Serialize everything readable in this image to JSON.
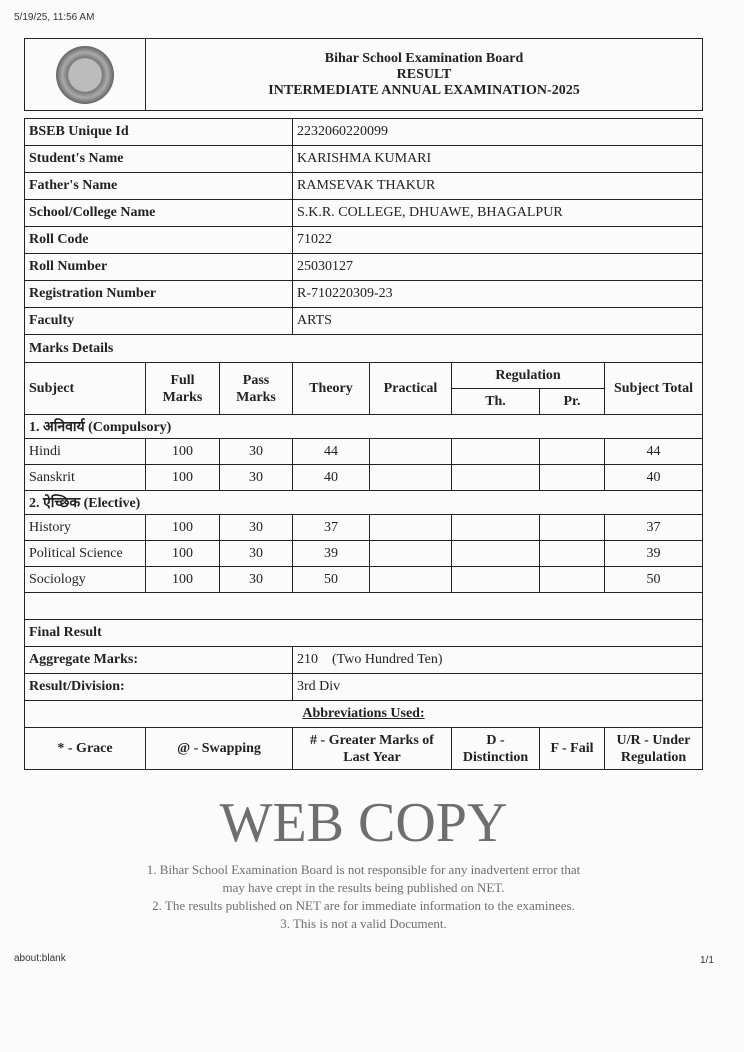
{
  "browser": {
    "timestamp": "5/19/25, 11:56 AM",
    "url": "about:blank",
    "page": "1/1"
  },
  "header": {
    "org": "Bihar School Examination Board",
    "title": "RESULT",
    "exam": "INTERMEDIATE ANNUAL EXAMINATION-2025"
  },
  "info": [
    {
      "label": "BSEB Unique Id",
      "value": "2232060220099"
    },
    {
      "label": "Student's Name",
      "value": "KARISHMA KUMARI"
    },
    {
      "label": "Father's Name",
      "value": "RAMSEVAK THAKUR"
    },
    {
      "label": "School/College Name",
      "value": "S.K.R. COLLEGE, DHUAWE, BHAGALPUR"
    },
    {
      "label": "Roll Code",
      "value": "71022"
    },
    {
      "label": "Roll Number",
      "value": "25030127"
    },
    {
      "label": "Registration Number",
      "value": "R-710220309-23"
    },
    {
      "label": "Faculty",
      "value": "ARTS"
    }
  ],
  "marks": {
    "title": "Marks Details",
    "headers": {
      "subject": "Subject",
      "full": "Full Marks",
      "pass": "Pass Marks",
      "theory": "Theory",
      "practical": "Practical",
      "regulation": "Regulation",
      "th": "Th.",
      "pr": "Pr.",
      "total": "Subject Total"
    },
    "groups": [
      {
        "name": "1. अनिवार्य (Compulsory)",
        "rows": [
          {
            "subject": "Hindi",
            "full": "100",
            "pass": "30",
            "theory": "44",
            "practical": "",
            "th": "",
            "pr": "",
            "total": "44"
          },
          {
            "subject": "Sanskrit",
            "full": "100",
            "pass": "30",
            "theory": "40",
            "practical": "",
            "th": "",
            "pr": "",
            "total": "40"
          }
        ]
      },
      {
        "name": "2. ऐच्छिक (Elective)",
        "rows": [
          {
            "subject": "History",
            "full": "100",
            "pass": "30",
            "theory": "37",
            "practical": "",
            "th": "",
            "pr": "",
            "total": "37"
          },
          {
            "subject": "Political Science",
            "full": "100",
            "pass": "30",
            "theory": "39",
            "practical": "",
            "th": "",
            "pr": "",
            "total": "39"
          },
          {
            "subject": "Sociology",
            "full": "100",
            "pass": "30",
            "theory": "50",
            "practical": "",
            "th": "",
            "pr": "",
            "total": "50"
          }
        ]
      }
    ]
  },
  "final": {
    "title": "Final Result",
    "aggregate_label": "Aggregate Marks:",
    "aggregate_value": "210    (Two Hundred Ten)",
    "result_label": "Result/Division:",
    "result_value": "3rd Div"
  },
  "abbrev": {
    "title": "Abbreviations Used:",
    "items": [
      "* - Grace",
      "@ - Swapping",
      "# - Greater Marks of Last Year",
      "D - Distinction",
      "F - Fail",
      "U/R - Under Regulation"
    ]
  },
  "watermark": {
    "main": "WEB COPY",
    "notes": [
      "1. Bihar School Examination Board is not responsible for any inadvertent error that",
      "may have crept in the results being published on NET.",
      "2. The results published on NET are for immediate information to the examinees.",
      "3. This is not a valid Document."
    ]
  }
}
